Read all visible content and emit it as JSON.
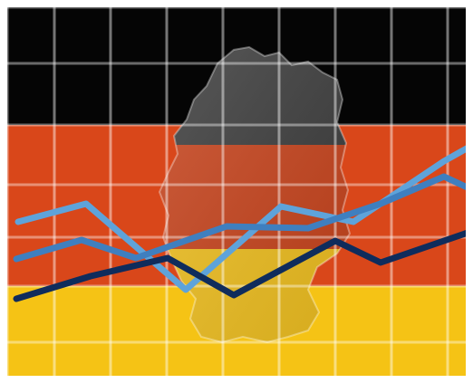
{
  "image": {
    "subject": "german-flag-economy-illustration",
    "flag_colors": {
      "black": "#050505",
      "red": "#d9471a",
      "gold": "#f5c315"
    },
    "map_colors": {
      "upper": "#3a3a3a",
      "middle": "#c9421a",
      "lower": "#f2c11e"
    },
    "grid_color": "#ffffff",
    "lines": [
      {
        "color": "#5ea3da",
        "role": "light-trend-line"
      },
      {
        "color": "#3f7fbf",
        "role": "medium-trend-line"
      },
      {
        "color": "#0f2c5c",
        "role": "dark-trend-line"
      }
    ]
  }
}
